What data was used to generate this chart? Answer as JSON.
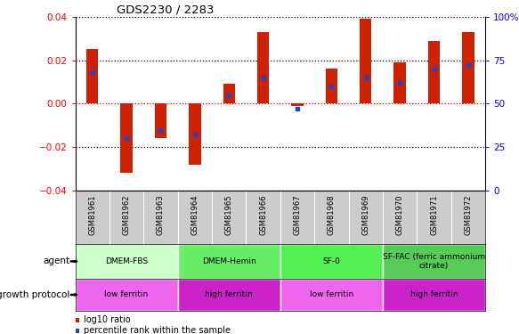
{
  "title": "GDS2230 / 2283",
  "samples": [
    "GSM81961",
    "GSM81962",
    "GSM81963",
    "GSM81964",
    "GSM81965",
    "GSM81966",
    "GSM81967",
    "GSM81968",
    "GSM81969",
    "GSM81970",
    "GSM81971",
    "GSM81972"
  ],
  "log10_ratio": [
    0.025,
    -0.032,
    -0.016,
    -0.028,
    0.009,
    0.033,
    -0.001,
    0.016,
    0.039,
    0.019,
    0.029,
    0.033
  ],
  "percentile_rank": [
    68,
    30,
    35,
    32,
    55,
    65,
    47,
    60,
    65,
    62,
    70,
    72
  ],
  "ylim_left": [
    -0.04,
    0.04
  ],
  "ylim_right": [
    0,
    100
  ],
  "yticks_left": [
    -0.04,
    -0.02,
    0,
    0.02,
    0.04
  ],
  "yticks_right": [
    0,
    25,
    50,
    75,
    100
  ],
  "bar_color": "#CC2200",
  "dot_color": "#2244CC",
  "bar_width": 0.35,
  "agent_groups": [
    {
      "label": "DMEM-FBS",
      "start": 0,
      "end": 2,
      "color": "#ccffcc"
    },
    {
      "label": "DMEM-Hemin",
      "start": 3,
      "end": 5,
      "color": "#66ee66"
    },
    {
      "label": "SF-0",
      "start": 6,
      "end": 8,
      "color": "#55ee55"
    },
    {
      "label": "SF-FAC (ferric ammonium\ncitrate)",
      "start": 9,
      "end": 11,
      "color": "#55cc55"
    }
  ],
  "protocol_groups": [
    {
      "label": "low ferritin",
      "start": 0,
      "end": 2,
      "color": "#ee66ee"
    },
    {
      "label": "high ferritin",
      "start": 3,
      "end": 5,
      "color": "#cc22cc"
    },
    {
      "label": "low ferritin",
      "start": 6,
      "end": 8,
      "color": "#ee66ee"
    },
    {
      "label": "high ferritin",
      "start": 9,
      "end": 11,
      "color": "#cc22cc"
    }
  ],
  "agent_label": "agent",
  "protocol_label": "growth protocol",
  "legend_items": [
    {
      "label": "log10 ratio",
      "color": "#CC2200"
    },
    {
      "label": "percentile rank within the sample",
      "color": "#2244CC"
    }
  ],
  "background_color": "#ffffff",
  "tick_area_bg": "#cccccc",
  "dotline_color": "#000000"
}
